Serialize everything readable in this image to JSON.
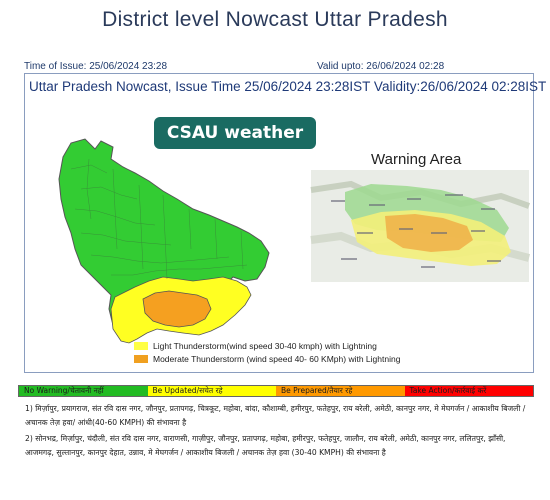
{
  "header": {
    "title": "District level Nowcast Uttar Pradesh",
    "time_of_issue": "Time of Issue: 25/06/2024 23:28",
    "valid_upto": "Valid upto:    26/06/2024 02:28"
  },
  "panel": {
    "heading": "Uttar Pradesh Nowcast, Issue Time 25/06/2024 23:28IST  Validity:26/06/2024 02:28IST",
    "brand": "CSAU weather",
    "inset_title": "Warning Area"
  },
  "map": {
    "colors": {
      "no_warning": "#33cc33",
      "light": "#ffff22",
      "moderate": "#f5a020",
      "border": "#555555"
    },
    "legend": [
      {
        "label": "Light Thunderstorm(wind speed 30-40 kmph) with Lightning",
        "color": "#ffff44"
      },
      {
        "label": "Moderate Thunderstorm (wind speed 40- 60 KMph) with Lightning",
        "color": "#f0a020"
      }
    ]
  },
  "warning_scale": [
    {
      "label": "No Warning/चेतावनी नहीं",
      "color": "#22bb22"
    },
    {
      "label": "Be Updated/सचेत रहे",
      "color": "#ffff00"
    },
    {
      "label": "Be Prepared/तैयार रहे",
      "color": "#ff9900"
    },
    {
      "label": "Take Action/कार्रवाई करें",
      "color": "#ff0000"
    }
  ],
  "notes": [
    "1) मिर्ज़ापुर, प्रयागराज, संत रवि दास नगर, जौनपुर, प्रतापगढ़, चित्रकूट, महोबा, बांदा, कौशाम्बी, हमीरपुर, फतेहपुर, राय बरेली, अमेठी, कानपुर नगर,  मे मेघगर्जन / आकाशीय बिजली / अचानक तेज़ हवा/ आंधी(40-60 KMPH) की संभावना है",
    "2) सोनभद्र, मिर्ज़ापुर, चंदौली, संत रवि दास नगर, वाराणसी, गाज़ीपुर, जौनपुर, प्रतापगढ़, महोबा, हमीरपुर, फतेहपुर, जालौन, राय बरेली, अमेठी, कानपुर नगर, ललितपुर, झाँसी, आजमगढ़, सुल्तानपुर, कानपुर देहात, उन्नाव,  मे मेघगर्जन / आकाशीय बिजली / अचानक तेज़ हवा (30-40 KMPH) की संभावना है"
  ]
}
